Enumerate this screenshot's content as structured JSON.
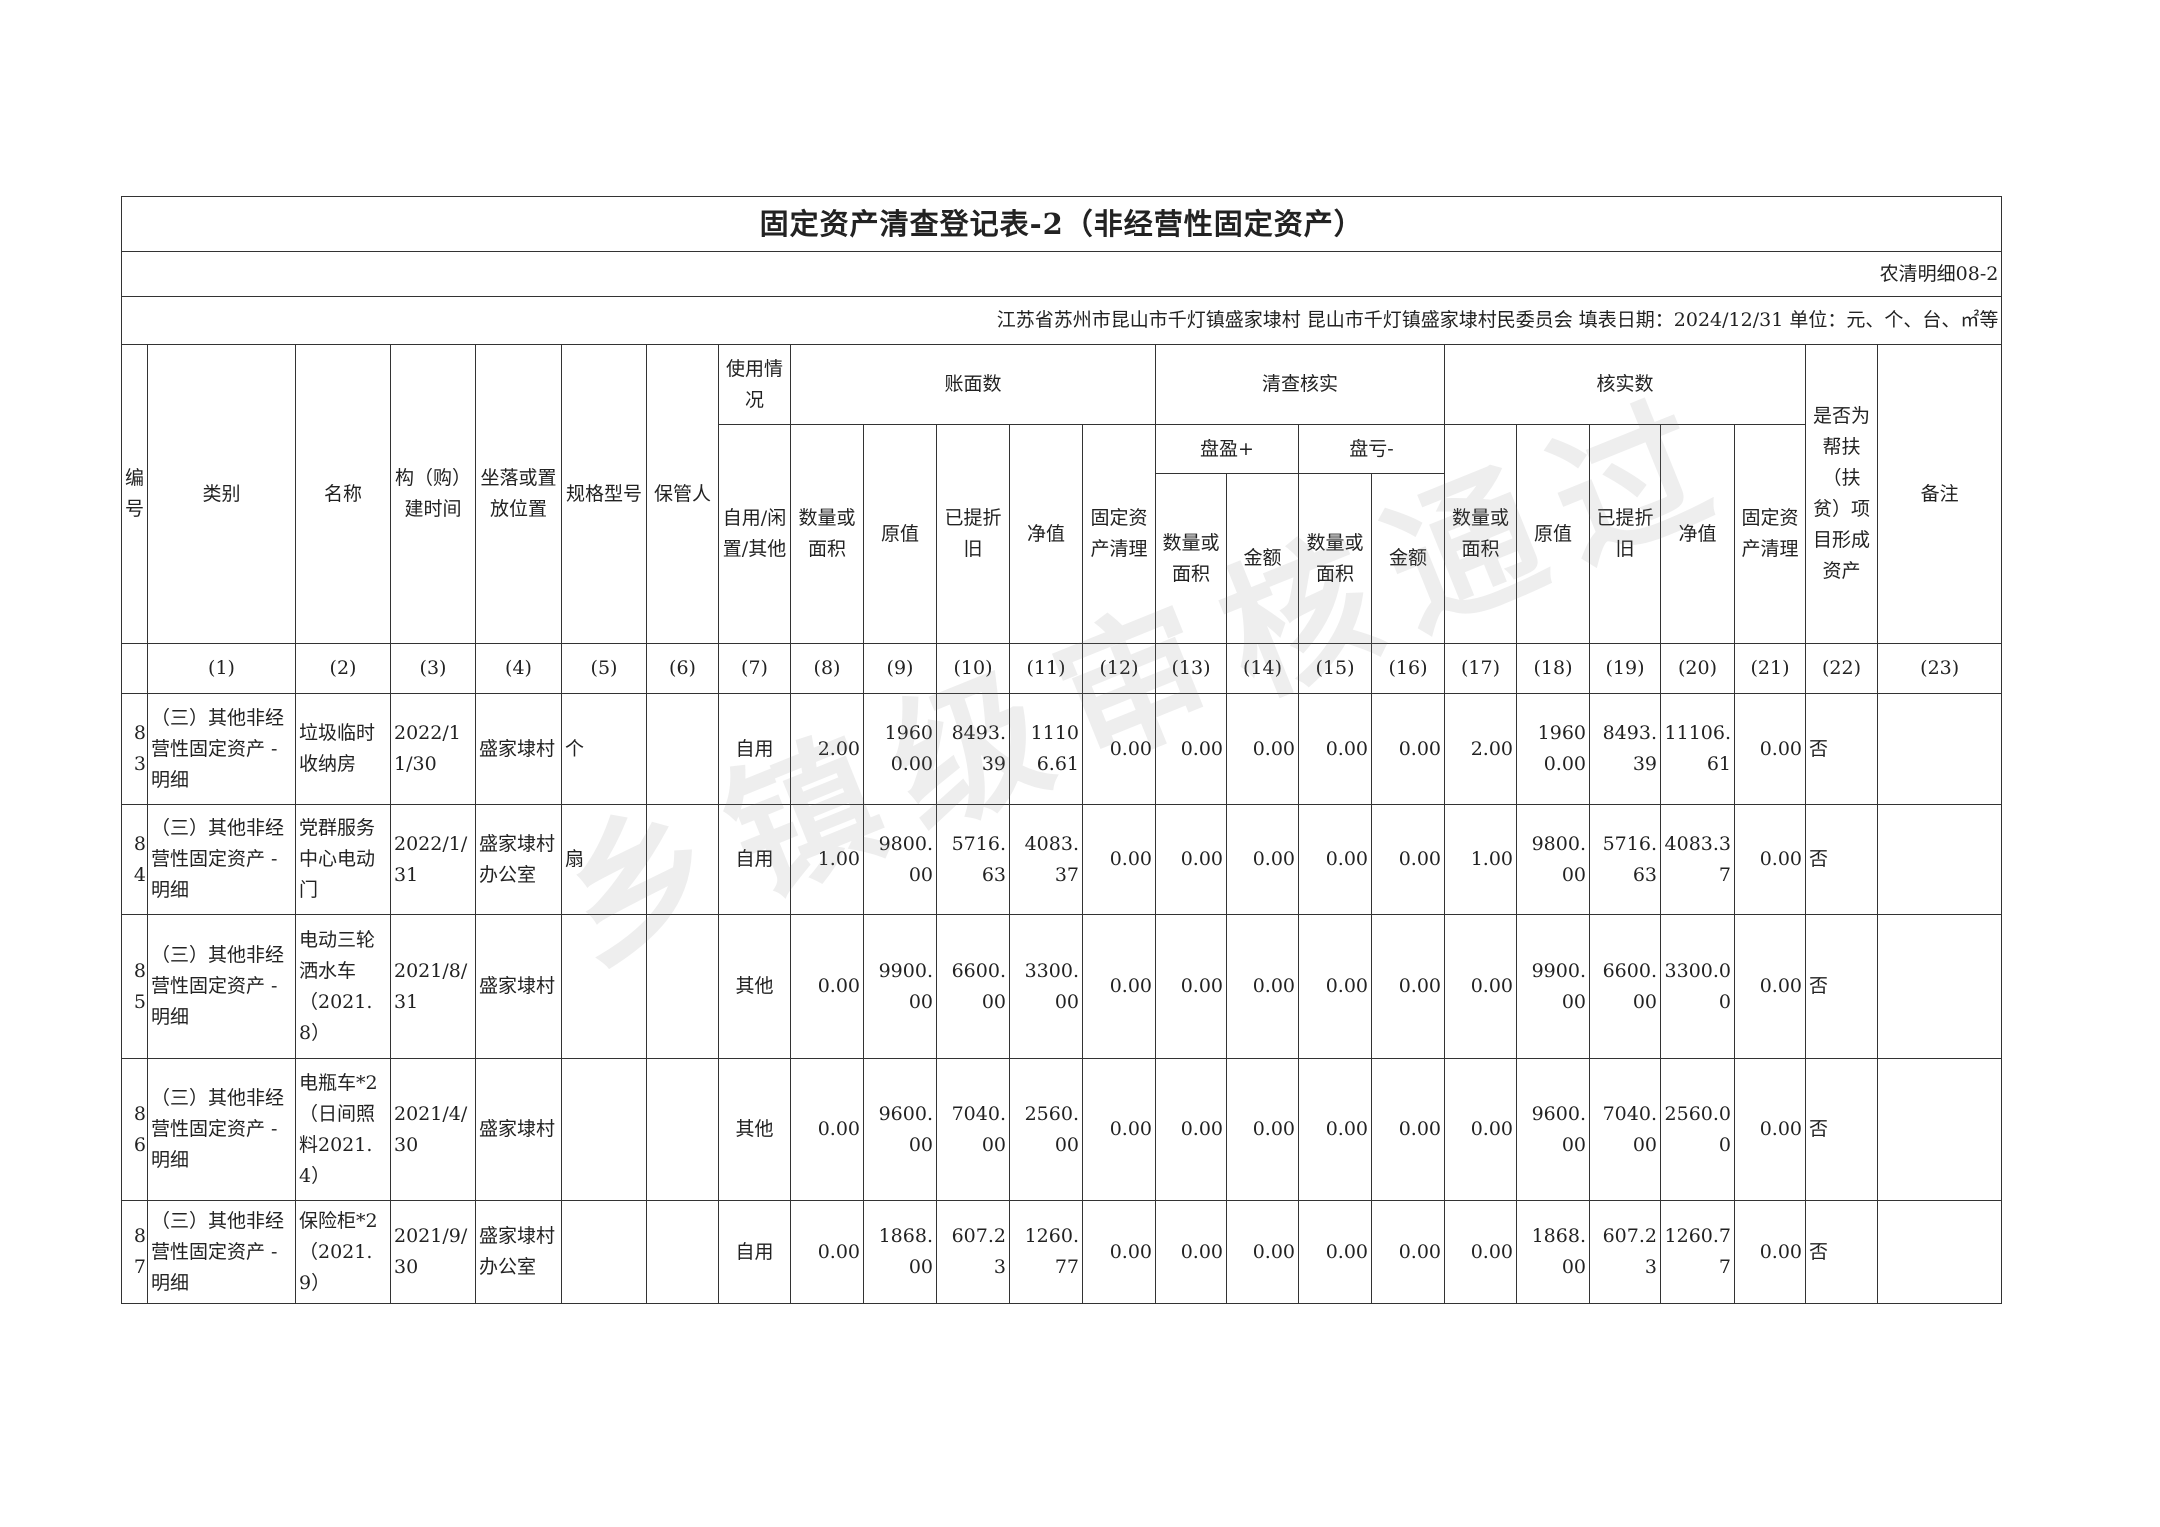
{
  "title": "固定资产清查登记表-2（非经营性固定资产）",
  "form_code": "农清明细08-2",
  "meta_line": "江苏省苏州市昆山市千灯镇盛家埭村  昆山市千灯镇盛家埭村民委员会  填表日期：2024/12/31   单位：元、个、台、㎡等",
  "watermark": "乡镇级审核通过",
  "headers": {
    "no": "编号",
    "category": "类别",
    "name": "名称",
    "build_time": "构（购）建时间",
    "location": "坐落或置放位置",
    "spec": "规格型号",
    "keeper": "保管人",
    "usage": "使用情况",
    "usage_sub": "自用/闲置/其他",
    "book": "账面数",
    "check": "清查核实",
    "surplus": "盘盈+",
    "deficit": "盘亏-",
    "verified": "核实数",
    "qty": "数量或面积",
    "orig": "原值",
    "depr": "已提折旧",
    "net": "净值",
    "clear": "固定资产清理",
    "amount": "金额",
    "poverty": "是否为帮扶（扶贫）项目形成资产",
    "remark": "备注"
  },
  "col_numbers": [
    "",
    "(1)",
    "(2)",
    "(3)",
    "(4)",
    "(5)",
    "(6)",
    "(7)",
    "(8)",
    "(9)",
    "(10)",
    "(11)",
    "(12)",
    "(13)",
    "(14)",
    "(15)",
    "(16)",
    "(17)",
    "(18)",
    "(19)",
    "(20)",
    "(21)",
    "(22)",
    "(23)"
  ],
  "rows": [
    [
      "83",
      "（三）其他非经营性固定资产 - 明细",
      "垃圾临时收纳房",
      "2022/11/30",
      "盛家埭村",
      "个",
      "",
      "自用",
      "2.00",
      "19600.00",
      "8493.39",
      "11106.61",
      "0.00",
      "0.00",
      "0.00",
      "0.00",
      "0.00",
      "2.00",
      "19600.00",
      "8493.39",
      "11106.61",
      "0.00",
      "否",
      ""
    ],
    [
      "84",
      "（三）其他非经营性固定资产 - 明细",
      "党群服务中心电动门",
      "2022/1/31",
      "盛家埭村办公室",
      "扇",
      "",
      "自用",
      "1.00",
      "9800.00",
      "5716.63",
      "4083.37",
      "0.00",
      "0.00",
      "0.00",
      "0.00",
      "0.00",
      "1.00",
      "9800.00",
      "5716.63",
      "4083.37",
      "0.00",
      "否",
      ""
    ],
    [
      "85",
      "（三）其他非经营性固定资产 - 明细",
      "电动三轮洒水车（2021.8）",
      "2021/8/31",
      "盛家埭村",
      "",
      "",
      "其他",
      "0.00",
      "9900.00",
      "6600.00",
      "3300.00",
      "0.00",
      "0.00",
      "0.00",
      "0.00",
      "0.00",
      "0.00",
      "9900.00",
      "6600.00",
      "3300.00",
      "0.00",
      "否",
      ""
    ],
    [
      "86",
      "（三）其他非经营性固定资产 - 明细",
      "电瓶车*2（日间照料2021.4）",
      "2021/4/30",
      "盛家埭村",
      "",
      "",
      "其他",
      "0.00",
      "9600.00",
      "7040.00",
      "2560.00",
      "0.00",
      "0.00",
      "0.00",
      "0.00",
      "0.00",
      "0.00",
      "9600.00",
      "7040.00",
      "2560.00",
      "0.00",
      "否",
      ""
    ],
    [
      "87",
      "（三）其他非经营性固定资产 - 明细",
      "保险柜*2（2021.9）",
      "2021/9/30",
      "盛家埭村办公室",
      "",
      "",
      "自用",
      "0.00",
      "1868.00",
      "607.23",
      "1260.77",
      "0.00",
      "0.00",
      "0.00",
      "0.00",
      "0.00",
      "0.00",
      "1868.00",
      "607.23",
      "1260.77",
      "0.00",
      "否",
      ""
    ]
  ]
}
